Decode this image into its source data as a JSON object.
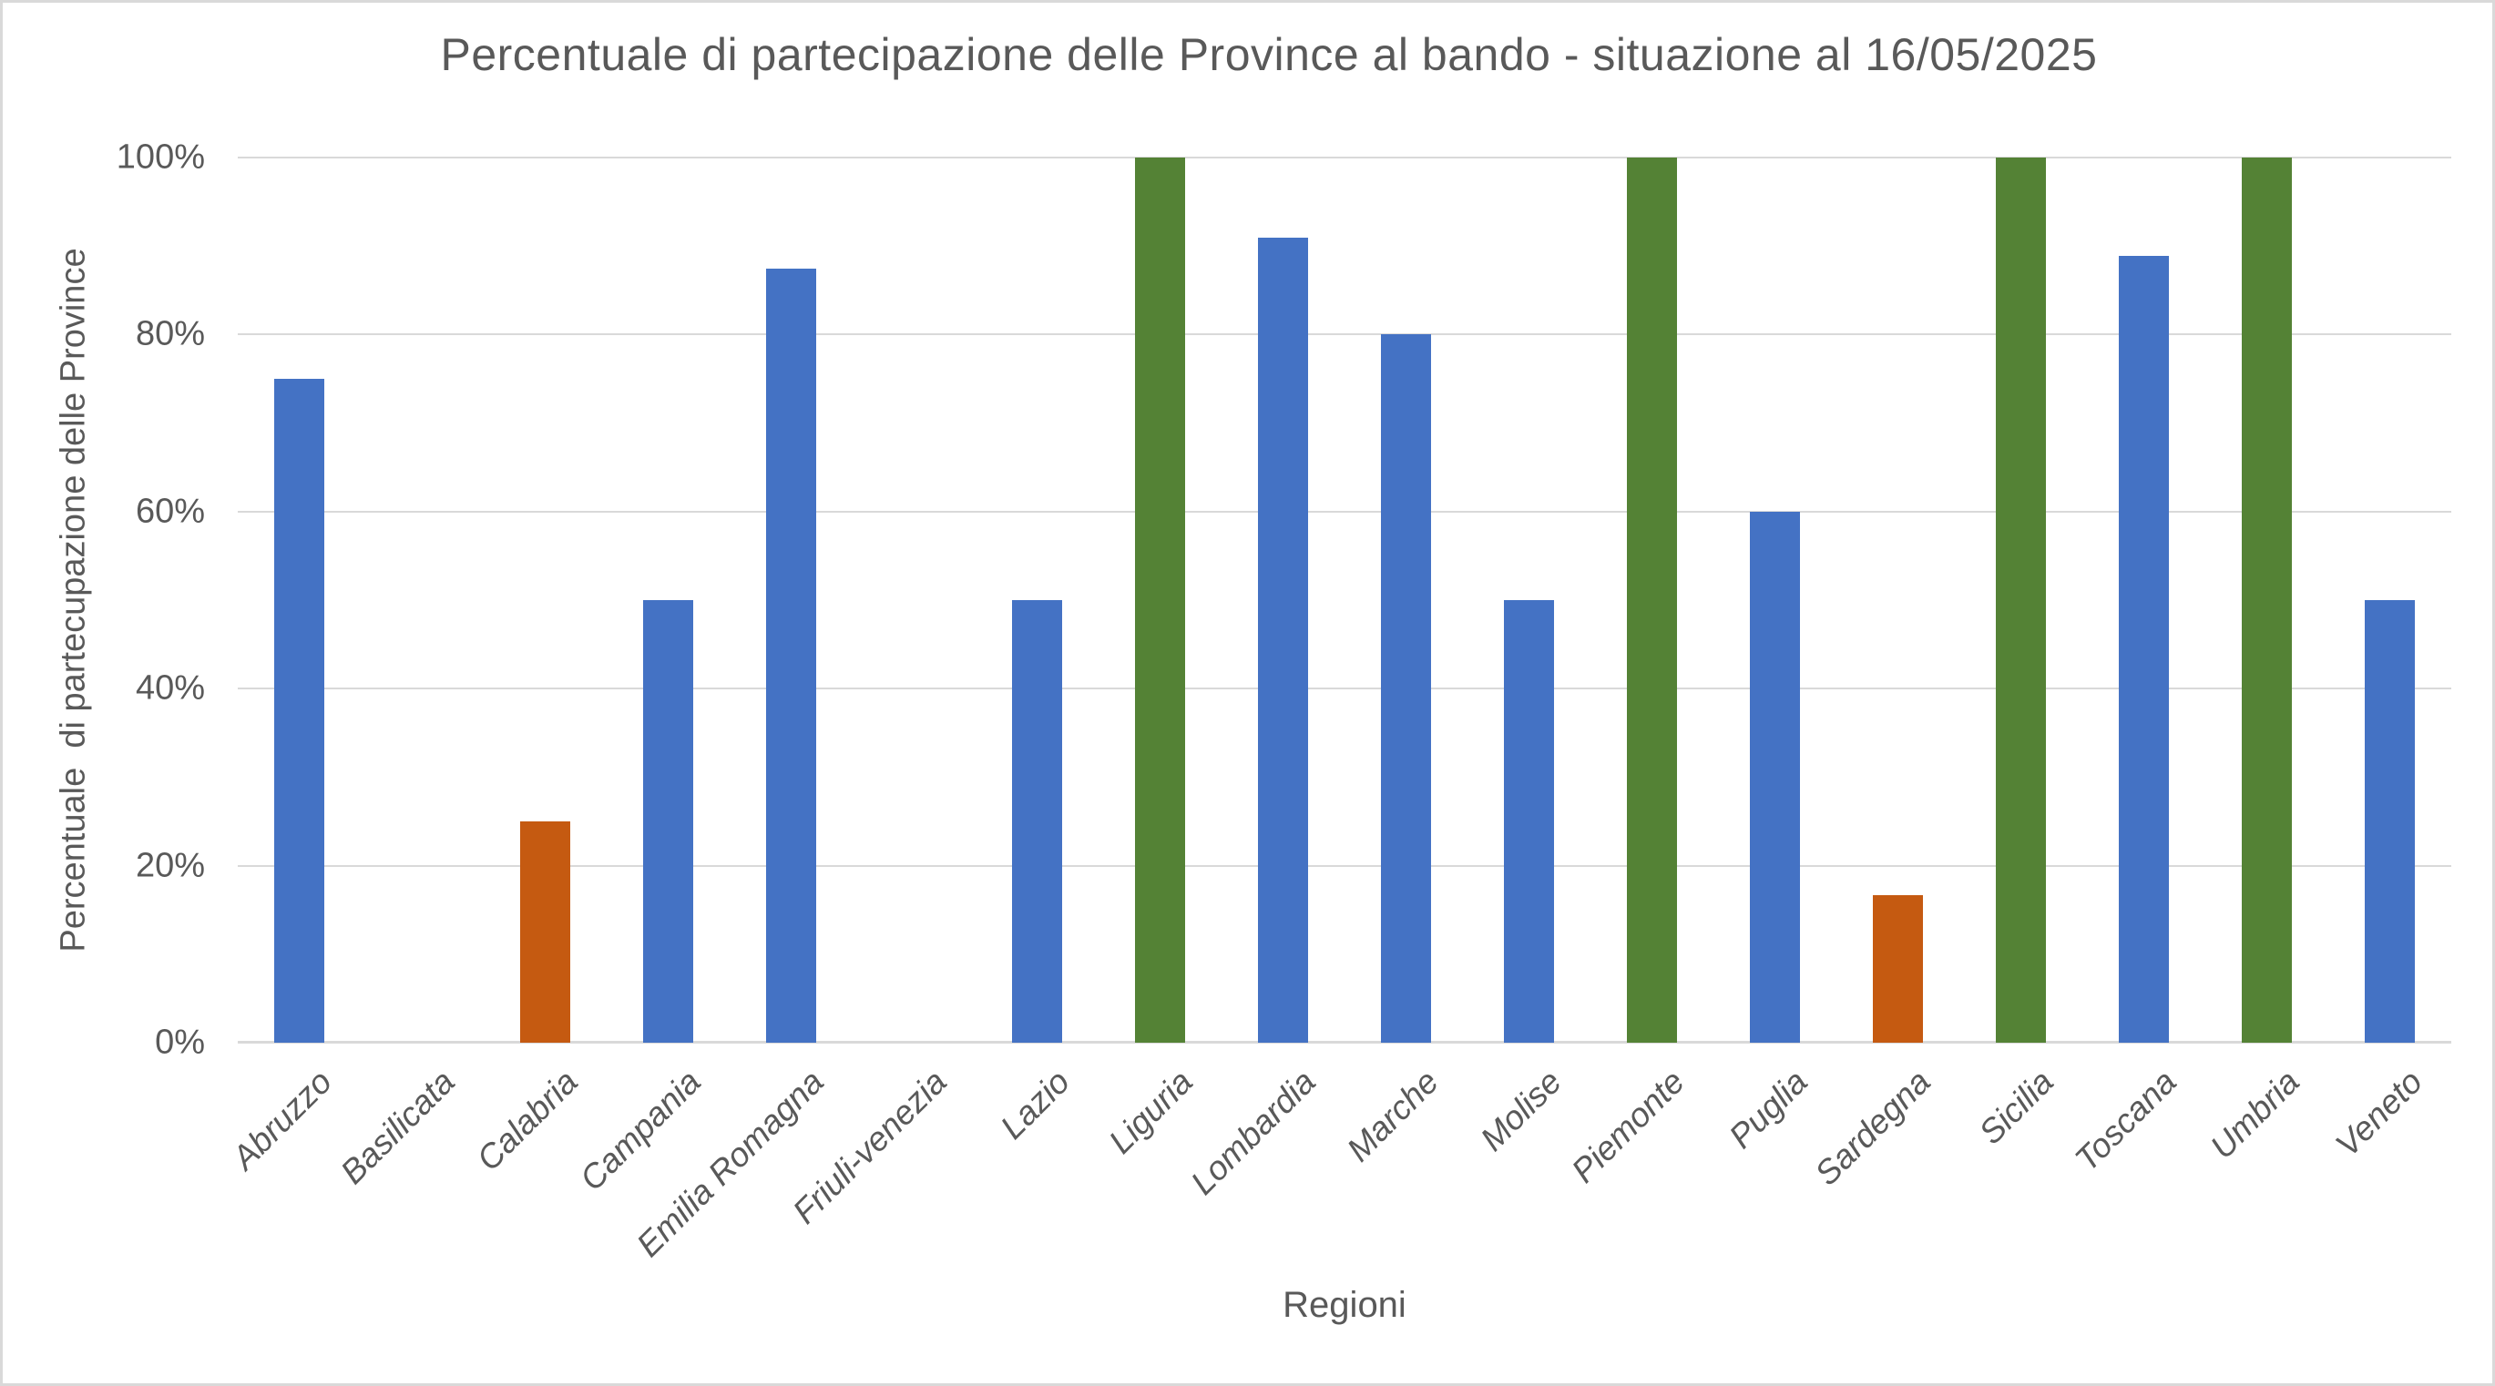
{
  "chart_data": {
    "type": "bar",
    "title": "Percentuale di partecipazione delle Province al bando - situazione al 16/05/2025",
    "xlabel": "Regioni",
    "ylabel": "Percentuale  di partecupazione delle Province",
    "ylim": [
      0,
      100
    ],
    "yticks": [
      "0%",
      "20%",
      "40%",
      "60%",
      "80%",
      "100%"
    ],
    "ytick_values": [
      0,
      20,
      40,
      60,
      80,
      100
    ],
    "grid": true,
    "legend": "none",
    "categories": [
      "Abruzzo",
      "Basilicata",
      "Calabria",
      "Campania",
      "Emilia Romagna",
      "Friuli-venezia",
      "Lazio",
      "Liguria",
      "Lombardia",
      "Marche",
      "Molise",
      "Piemonte",
      "Puglia",
      "Sardegna",
      "Sicilia",
      "Toscana",
      "Umbria",
      "Veneto"
    ],
    "values": [
      75,
      0,
      25,
      50,
      87.5,
      0,
      50,
      100,
      90.9,
      80,
      50,
      100,
      60,
      16.7,
      100,
      88.9,
      100,
      50
    ],
    "bar_colors": [
      "#4472C4",
      "none",
      "#C55A11",
      "#4472C4",
      "#4472C4",
      "none",
      "#4472C4",
      "#548235",
      "#4472C4",
      "#4472C4",
      "#4472C4",
      "#548235",
      "#4472C4",
      "#C55A11",
      "#548235",
      "#4472C4",
      "#548235",
      "#4472C4"
    ]
  },
  "colors": {
    "bar_blue": "#4472C4",
    "bar_orange": "#C55A11",
    "bar_green": "#548235",
    "gridline": "#D9D9D9",
    "axis_line": "#D9D9D9",
    "text": "#595959",
    "frame_border": "#D9D9D9",
    "background": "#FFFFFF"
  }
}
